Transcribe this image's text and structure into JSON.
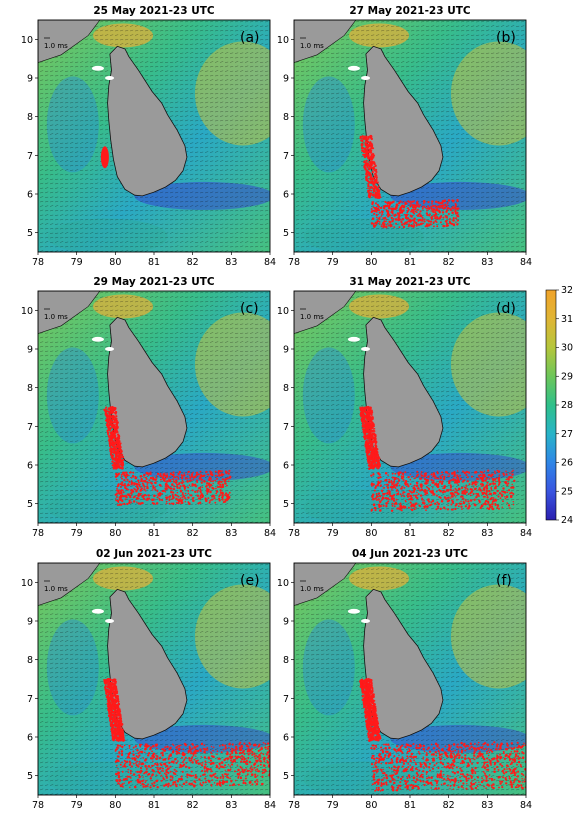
{
  "chart_data": {
    "type": "heatmap",
    "x_ticks": [
      "78",
      "79",
      "80",
      "81",
      "82",
      "83",
      "84"
    ],
    "y_ticks": [
      "5",
      "6",
      "7",
      "8",
      "9",
      "10"
    ],
    "xlim": [
      78,
      84
    ],
    "ylim": [
      4.5,
      10.5
    ],
    "reference_vector_label": "1.0 ms",
    "colorbar": {
      "ticks": [
        "32",
        "31",
        "30",
        "29",
        "28",
        "27",
        "26",
        "25",
        "24"
      ],
      "range": [
        24,
        32
      ],
      "colors": [
        "#2b1fb0",
        "#3a55e0",
        "#2f86e6",
        "#28b4c8",
        "#2fc08a",
        "#6dc65a",
        "#b5c63c",
        "#e0b535",
        "#f0a32a"
      ]
    },
    "panels": [
      {
        "title": "25 May 2021-23 UTC",
        "label": "(a)",
        "particle_spread": 0.0
      },
      {
        "title": "27 May 2021-23 UTC",
        "label": "(b)",
        "particle_spread": 0.35
      },
      {
        "title": "29 May 2021-23 UTC",
        "label": "(c)",
        "particle_spread": 0.55
      },
      {
        "title": "31 May 2021-23 UTC",
        "label": "(d)",
        "particle_spread": 0.75
      },
      {
        "title": "02 Jun 2021-23 UTC",
        "label": "(e)",
        "particle_spread": 0.9
      },
      {
        "title": "04 Jun 2021-23 UTC",
        "label": "(f)",
        "particle_spread": 1.0
      }
    ]
  }
}
